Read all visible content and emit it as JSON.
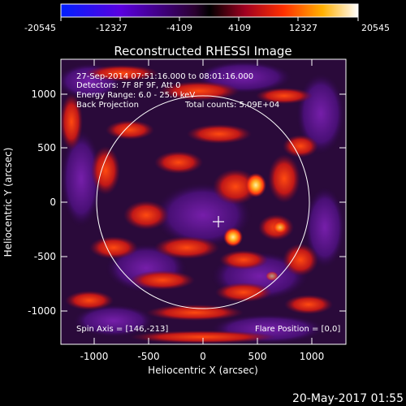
{
  "title": "Reconstructed RHESSI Image",
  "colorbar": {
    "ticks": [
      "-20545",
      "-12327",
      "-4109",
      "4109",
      "12327",
      "20545"
    ]
  },
  "info": {
    "time_range": "27-Sep-2014 07:51:16.000 to 08:01:16.000",
    "detectors": "Detectors: 7F 8F 9F, Att 0",
    "energy": "Energy Range: 6.0 - 25.0 keV",
    "method": "Back Projection",
    "counts": "Total counts: 5.09E+04",
    "spin_axis": "Spin Axis = [146,-213]",
    "flare_position": "Flare Position = [0,0]"
  },
  "axes": {
    "xlabel": "Heliocentric X (arcsec)",
    "ylabel": "Heliocentric Y (arcsec)",
    "xticks": [
      "-1000",
      "-500",
      "0",
      "500",
      "1000"
    ],
    "yticks": [
      "1000",
      "500",
      "0",
      "-500",
      "-1000"
    ]
  },
  "footer": {
    "date": "20-May-2017 01:55"
  },
  "colors": {
    "background": "#000000",
    "axis": "#ffffff",
    "limb": "#ffffff"
  }
}
